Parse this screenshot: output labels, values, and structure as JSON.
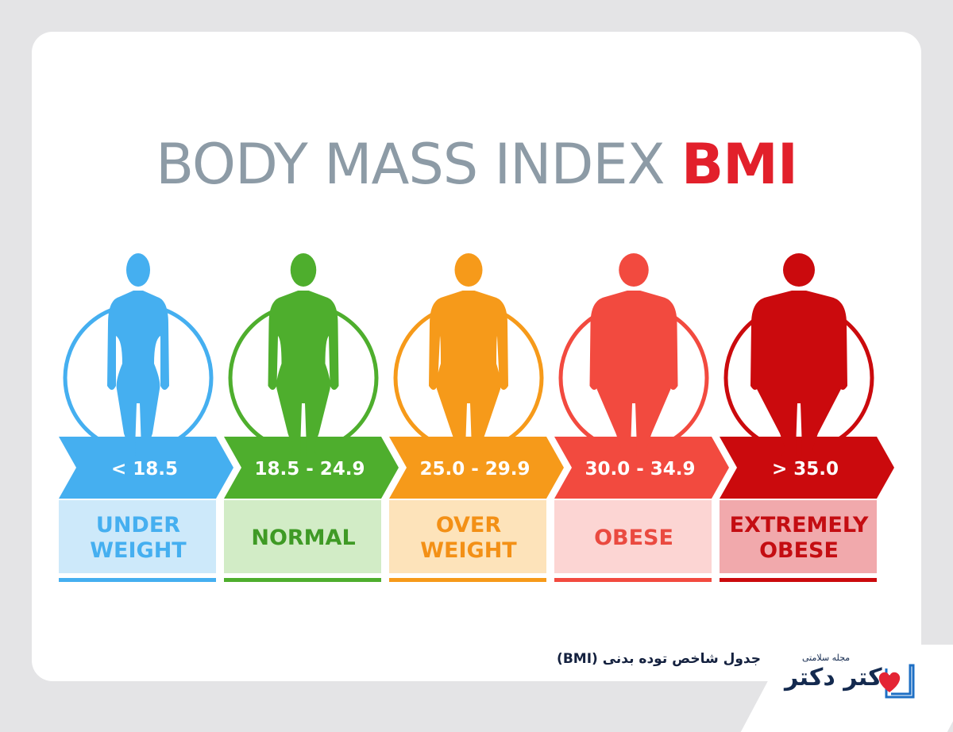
{
  "title": {
    "light": "BODY MASS INDEX",
    "strong": "BMI"
  },
  "categories": [
    {
      "range": "< 18.5",
      "label_lines": [
        "UNDER",
        "WEIGHT"
      ],
      "build": 0.0,
      "colors": {
        "main": "#45aff0",
        "light": "#cde9fa",
        "text": "#45aff0"
      }
    },
    {
      "range": "18.5 - 24.9",
      "label_lines": [
        "NORMAL"
      ],
      "build": 0.25,
      "colors": {
        "main": "#4eae2d",
        "light": "#d2ecc6",
        "text": "#3f9a25"
      }
    },
    {
      "range": "25.0 - 29.9",
      "label_lines": [
        "OVER",
        "WEIGHT"
      ],
      "build": 0.5,
      "colors": {
        "main": "#f69a1a",
        "light": "#fde3ba",
        "text": "#f39016"
      }
    },
    {
      "range": "30.0 - 34.9",
      "label_lines": [
        "OBESE"
      ],
      "build": 0.75,
      "colors": {
        "main": "#f24a3f",
        "light": "#fcd5d3",
        "text": "#ea4a40"
      }
    },
    {
      "range": "> 35.0",
      "label_lines": [
        "EXTREMELY",
        "OBESE"
      ],
      "build": 1.0,
      "colors": {
        "main": "#cb0a0d",
        "light": "#f1a9ac",
        "text": "#c40d12"
      }
    }
  ],
  "caption": "جدول شاخص توده بدنی (BMI)",
  "brand": {
    "sub": "مجله سلامتی",
    "name": "دکتر دکتر",
    "heart_color": "#e42434",
    "book_color": "#1e6fc4"
  }
}
